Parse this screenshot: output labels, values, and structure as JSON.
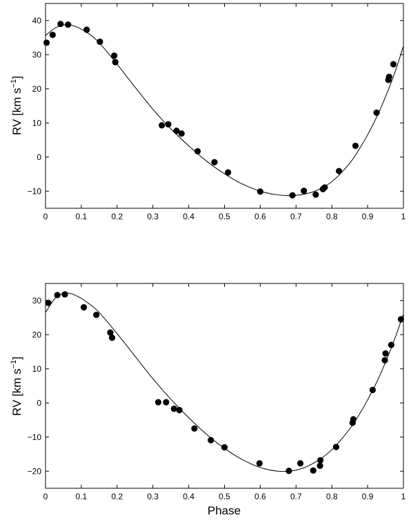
{
  "chart_data": [
    {
      "type": "scatter",
      "title": "",
      "xlabel": "",
      "ylabel": {
        "main": "RV [km s",
        "sup": "−1",
        "close": "]"
      },
      "xlim": [
        0,
        1
      ],
      "ylim": [
        -15,
        45
      ],
      "xticks": [
        0,
        0.1,
        0.2,
        0.3,
        0.4,
        0.5,
        0.6,
        0.7,
        0.8,
        0.9,
        1
      ],
      "xtick_labels": [
        "0",
        "0.1",
        "0.2",
        "0.3",
        "0.4",
        "0.5",
        "0.6",
        "0.7",
        "0.8",
        "0.9",
        "1"
      ],
      "yticks": [
        -10,
        0,
        10,
        20,
        30,
        40
      ],
      "ytick_labels": [
        "−10",
        "0",
        "10",
        "20",
        "30",
        "40"
      ],
      "grid": false,
      "series": [
        {
          "kind": "points",
          "x": [
            0.003,
            0.02,
            0.042,
            0.063,
            0.115,
            0.152,
            0.192,
            0.195,
            0.325,
            0.343,
            0.366,
            0.38,
            0.425,
            0.472,
            0.51,
            0.6,
            0.69,
            0.722,
            0.755,
            0.775,
            0.78,
            0.82,
            0.866,
            0.925,
            0.958,
            0.96,
            0.972
          ],
          "y": [
            33.5,
            35.8,
            39,
            38.8,
            37.3,
            33.8,
            29.7,
            27.8,
            9.3,
            9.6,
            7.7,
            6.9,
            1.7,
            -1.5,
            -4.5,
            -10.1,
            -11.2,
            -9.9,
            -11,
            -9.4,
            -8.9,
            -4.1,
            3.3,
            13,
            22.6,
            23.5,
            27.2
          ],
          "color": "#000000"
        },
        {
          "kind": "fit",
          "x": [
            0,
            0.03,
            0.06,
            0.09,
            0.12,
            0.15,
            0.2,
            0.25,
            0.3,
            0.35,
            0.4,
            0.45,
            0.5,
            0.55,
            0.6,
            0.65,
            0.7,
            0.75,
            0.8,
            0.85,
            0.88,
            0.9,
            0.93,
            0.96,
            0.98,
            1
          ],
          "y": [
            35.6,
            38,
            38.8,
            38,
            36.2,
            33.5,
            27.2,
            20.5,
            14,
            8.3,
            3.3,
            -1.2,
            -4.9,
            -7.9,
            -10,
            -11.1,
            -11.2,
            -10.1,
            -7.2,
            -1.8,
            2.9,
            6.5,
            12.8,
            20.3,
            26,
            32.5
          ],
          "color": "#000000"
        }
      ]
    },
    {
      "type": "scatter",
      "title": "",
      "xlabel": "Phase",
      "ylabel": {
        "main": "RV [km s",
        "sup": "−1",
        "close": "]"
      },
      "xlim": [
        0,
        1
      ],
      "ylim": [
        -25,
        35
      ],
      "xticks": [
        0,
        0.1,
        0.2,
        0.3,
        0.4,
        0.5,
        0.6,
        0.7,
        0.8,
        0.9,
        1
      ],
      "xtick_labels": [
        "0",
        "0.1",
        "0.2",
        "0.3",
        "0.4",
        "0.5",
        "0.6",
        "0.7",
        "0.8",
        "0.9",
        "1"
      ],
      "yticks": [
        -20,
        -10,
        0,
        10,
        20,
        30
      ],
      "ytick_labels": [
        "−20",
        "−10",
        "0",
        "10",
        "20",
        "30"
      ],
      "grid": false,
      "series": [
        {
          "kind": "points",
          "x": [
            0.008,
            0.033,
            0.054,
            0.107,
            0.142,
            0.181,
            0.186,
            0.315,
            0.337,
            0.359,
            0.374,
            0.416,
            0.462,
            0.5,
            0.598,
            0.68,
            0.712,
            0.748,
            0.767,
            0.768,
            0.812,
            0.858,
            0.86,
            0.914,
            0.948,
            0.95,
            0.966,
            0.993
          ],
          "y": [
            29.3,
            31.6,
            31.8,
            28,
            25.8,
            20.6,
            19.1,
            0.2,
            0.2,
            -1.7,
            -2.1,
            -7.5,
            -10.9,
            -13,
            -17.7,
            -19.9,
            -17.7,
            -19.8,
            -18.4,
            -16.8,
            -12.9,
            -5.8,
            -4.8,
            3.8,
            12.5,
            14.5,
            17,
            24.5
          ],
          "color": "#000000"
        },
        {
          "kind": "fit",
          "x": [
            0,
            0.03,
            0.06,
            0.09,
            0.12,
            0.15,
            0.2,
            0.25,
            0.3,
            0.35,
            0.4,
            0.45,
            0.5,
            0.55,
            0.6,
            0.65,
            0.7,
            0.75,
            0.8,
            0.85,
            0.88,
            0.9,
            0.93,
            0.96,
            0.98,
            1
          ],
          "y": [
            26.5,
            31,
            32.2,
            31.2,
            29.2,
            26.5,
            20.3,
            13.7,
            7.1,
            1.1,
            -4.3,
            -9.2,
            -13.3,
            -16.6,
            -18.9,
            -20,
            -19.7,
            -17.6,
            -13.7,
            -7.6,
            -2.8,
            0.9,
            7.1,
            14.5,
            20,
            26
          ]
        }
      ]
    }
  ]
}
